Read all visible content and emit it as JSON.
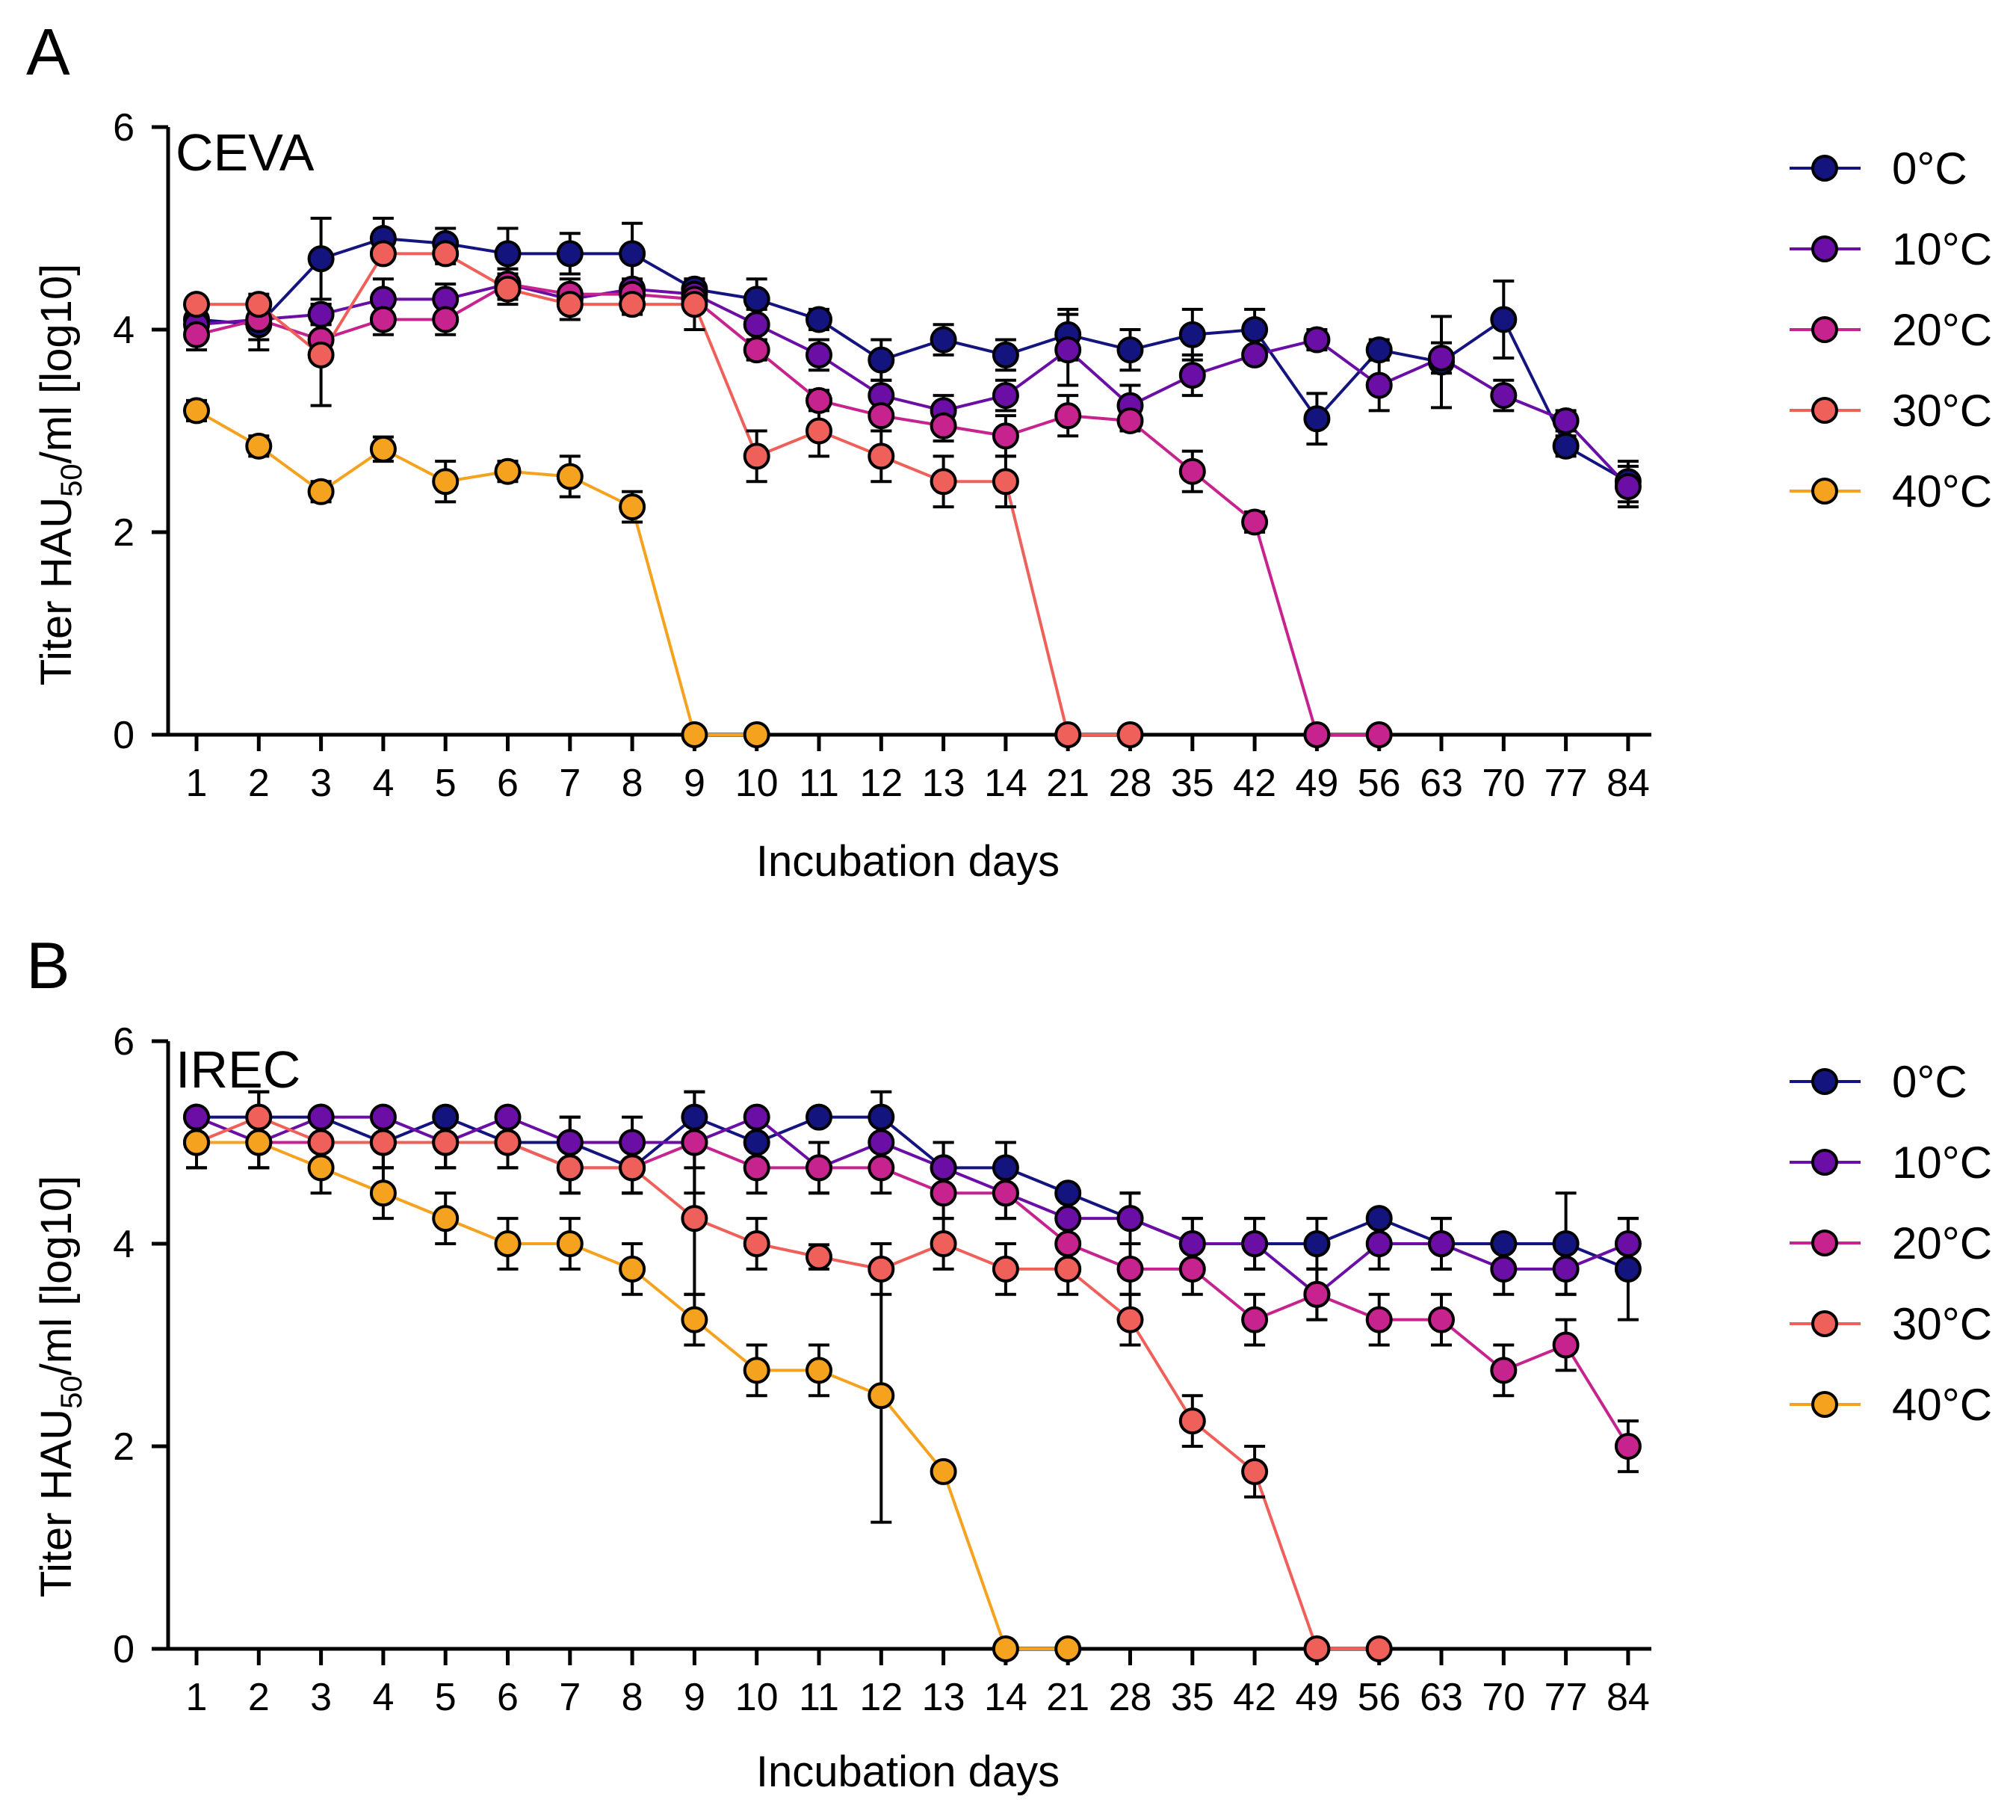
{
  "chart_data": [
    {
      "type": "line",
      "panel_label": "A",
      "title": "CEVA",
      "xlabel": "Incubation days",
      "ylabel_main": "Titer HAU",
      "ylabel_sub": "50",
      "ylabel_rest": "/ml [log10]",
      "categories": [
        "1",
        "2",
        "3",
        "4",
        "5",
        "6",
        "7",
        "8",
        "9",
        "10",
        "11",
        "12",
        "13",
        "14",
        "21",
        "28",
        "35",
        "42",
        "49",
        "56",
        "63",
        "70",
        "77",
        "84"
      ],
      "ylim": [
        0,
        6
      ],
      "yticks": [
        "0",
        "2",
        "4",
        "6"
      ],
      "legend_position": "right",
      "series": [
        {
          "name": "0°C",
          "color": "#14147f",
          "values": [
            4.1,
            4.05,
            4.7,
            4.9,
            4.85,
            4.75,
            4.75,
            4.75,
            4.4,
            4.3,
            4.1,
            3.7,
            3.9,
            3.75,
            3.95,
            3.8,
            3.95,
            4.0,
            3.12,
            3.8,
            3.68,
            4.1,
            2.85,
            2.5
          ],
          "errors": [
            0.1,
            0.25,
            0.4,
            0.2,
            0.15,
            0.25,
            0.2,
            0.3,
            0.1,
            0.2,
            0.1,
            0.2,
            0.15,
            0.15,
            0.25,
            0.2,
            0.25,
            0.2,
            0.25,
            0.1,
            0.45,
            0.38,
            0.1,
            0.2
          ]
        },
        {
          "name": "10°C",
          "color": "#6a0ea5",
          "values": [
            4.05,
            4.1,
            4.15,
            4.3,
            4.3,
            4.45,
            4.3,
            4.4,
            4.35,
            4.05,
            3.75,
            3.35,
            3.2,
            3.35,
            3.8,
            3.25,
            3.55,
            3.75,
            3.9,
            3.45,
            3.72,
            3.35,
            3.1,
            2.45
          ],
          "errors": [
            0.15,
            0.2,
            0.1,
            0.2,
            0.15,
            0.15,
            0.1,
            0.1,
            0.1,
            0.15,
            0.15,
            0.15,
            0.15,
            0.15,
            0.35,
            0.2,
            0.2,
            0.05,
            0.1,
            0.25,
            0.15,
            0.15,
            0.1,
            0.2
          ]
        },
        {
          "name": "20°C",
          "color": "#c7238e",
          "values": [
            3.95,
            4.1,
            3.9,
            4.1,
            4.1,
            4.45,
            4.35,
            4.35,
            4.3,
            3.8,
            3.3,
            3.15,
            3.05,
            2.95,
            3.15,
            3.1,
            2.6,
            2.1,
            0,
            0,
            null,
            null,
            null,
            null
          ],
          "errors": [
            0.15,
            0.1,
            0.15,
            0.15,
            0.15,
            0.15,
            0.15,
            0.1,
            0.1,
            0.1,
            0.1,
            0.15,
            0.15,
            0.2,
            0.2,
            0.1,
            0.2,
            0.1,
            0,
            0,
            null,
            null,
            null,
            null
          ]
        },
        {
          "name": "30°C",
          "color": "#f0605a",
          "values": [
            4.25,
            4.25,
            3.75,
            4.75,
            4.75,
            4.4,
            4.25,
            4.25,
            4.25,
            2.75,
            3.0,
            2.75,
            2.5,
            2.5,
            0,
            0,
            null,
            null,
            null,
            null,
            null,
            null,
            null,
            null
          ],
          "errors": [
            0.05,
            0.1,
            0.5,
            0.05,
            0.1,
            0.15,
            0.15,
            0.1,
            0.25,
            0.25,
            0.25,
            0.25,
            0.25,
            0.25,
            0,
            0,
            null,
            null,
            null,
            null,
            null,
            null,
            null,
            null
          ]
        },
        {
          "name": "40°C",
          "color": "#f5a21f",
          "values": [
            3.2,
            2.85,
            2.4,
            2.82,
            2.5,
            2.6,
            2.55,
            2.25,
            0,
            0,
            null,
            null,
            null,
            null,
            null,
            null,
            null,
            null,
            null,
            null,
            null,
            null,
            null,
            null
          ],
          "errors": [
            0.1,
            0.1,
            0.1,
            0.12,
            0.2,
            0.1,
            0.2,
            0.15,
            0,
            0,
            null,
            null,
            null,
            null,
            null,
            null,
            null,
            null,
            null,
            null,
            null,
            null,
            null,
            null
          ]
        }
      ]
    },
    {
      "type": "line",
      "panel_label": "B",
      "title": "IREC",
      "xlabel": "Incubation days",
      "ylabel_main": "Titer HAU",
      "ylabel_sub": "50",
      "ylabel_rest": "/ml [log10]",
      "categories": [
        "1",
        "2",
        "3",
        "4",
        "5",
        "6",
        "7",
        "8",
        "9",
        "10",
        "11",
        "12",
        "13",
        "14",
        "21",
        "28",
        "35",
        "42",
        "49",
        "56",
        "63",
        "70",
        "77",
        "84"
      ],
      "ylim": [
        0,
        6
      ],
      "yticks": [
        "0",
        "2",
        "4",
        "6"
      ],
      "legend_position": "right",
      "series": [
        {
          "name": "0°C",
          "color": "#14147f",
          "values": [
            5.25,
            5.25,
            5.25,
            5.0,
            5.25,
            5.0,
            5.0,
            4.75,
            5.25,
            5.0,
            5.25,
            5.25,
            4.75,
            4.75,
            4.5,
            4.25,
            4.0,
            4.0,
            4.0,
            4.25,
            4.0,
            4.0,
            4.0,
            3.75
          ],
          "errors": [
            0.05,
            0.25,
            0.05,
            0.25,
            0.05,
            0.25,
            0.25,
            0.25,
            0.25,
            0.25,
            0.05,
            0.25,
            0.25,
            0.25,
            0.05,
            0.25,
            0.25,
            0.25,
            0.25,
            0.05,
            0.25,
            0.05,
            0.5,
            0.5
          ]
        },
        {
          "name": "10°C",
          "color": "#6a0ea5",
          "values": [
            5.25,
            5.0,
            5.25,
            5.25,
            5.0,
            5.25,
            5.0,
            5.0,
            5.0,
            5.25,
            4.75,
            5.0,
            4.75,
            4.5,
            4.25,
            4.25,
            4.0,
            4.0,
            3.5,
            4.0,
            4.0,
            3.75,
            3.75,
            4.0
          ],
          "errors": [
            0.05,
            0.25,
            0.05,
            0.05,
            0.25,
            0.05,
            0.25,
            0.25,
            0.5,
            0.05,
            0.25,
            0.25,
            0.25,
            0.25,
            0.25,
            0.25,
            0.25,
            0.25,
            0.25,
            0.25,
            0.25,
            0.25,
            0.25,
            0.25
          ]
        },
        {
          "name": "20°C",
          "color": "#c7238e",
          "values": [
            5.0,
            5.0,
            5.0,
            5.0,
            5.0,
            5.0,
            4.75,
            4.75,
            5.0,
            4.75,
            4.75,
            4.75,
            4.5,
            4.5,
            4.0,
            3.75,
            3.75,
            3.25,
            3.5,
            3.25,
            3.25,
            2.75,
            3.0,
            2.0
          ],
          "errors": [
            0.25,
            0.25,
            0.25,
            0.25,
            0.25,
            0.25,
            0.25,
            0.25,
            0.25,
            0.25,
            0.25,
            0.25,
            0.25,
            0.25,
            0.25,
            0.25,
            0.25,
            0.25,
            0.25,
            0.25,
            0.25,
            0.25,
            0.25,
            0.25
          ]
        },
        {
          "name": "30°C",
          "color": "#f0605a",
          "values": [
            5.0,
            5.25,
            5.0,
            5.0,
            5.0,
            5.0,
            4.75,
            4.75,
            4.25,
            4.0,
            3.87,
            3.75,
            4.0,
            3.75,
            3.75,
            3.25,
            2.25,
            1.75,
            0,
            0,
            null,
            null,
            null,
            null
          ],
          "errors": [
            0.25,
            0.25,
            0.25,
            0.25,
            0.25,
            0.25,
            0.25,
            0.25,
            0.75,
            0.25,
            0.12,
            0.25,
            0.25,
            0.25,
            0.25,
            0.25,
            0.25,
            0.25,
            0,
            0,
            null,
            null,
            null,
            null
          ]
        },
        {
          "name": "40°C",
          "color": "#f5a21f",
          "values": [
            5.0,
            5.0,
            4.75,
            4.5,
            4.25,
            4.0,
            4.0,
            3.75,
            3.25,
            2.75,
            2.75,
            2.5,
            1.75,
            0,
            0,
            null,
            null,
            null,
            null,
            null,
            null,
            null,
            null,
            null
          ],
          "errors": [
            0.25,
            0.25,
            0.25,
            0.25,
            0.25,
            0.25,
            0.25,
            0.25,
            0.25,
            0.25,
            0.25,
            1.25,
            0.05,
            0,
            0,
            null,
            null,
            null,
            null,
            null,
            null,
            null,
            null,
            null
          ]
        }
      ]
    }
  ]
}
